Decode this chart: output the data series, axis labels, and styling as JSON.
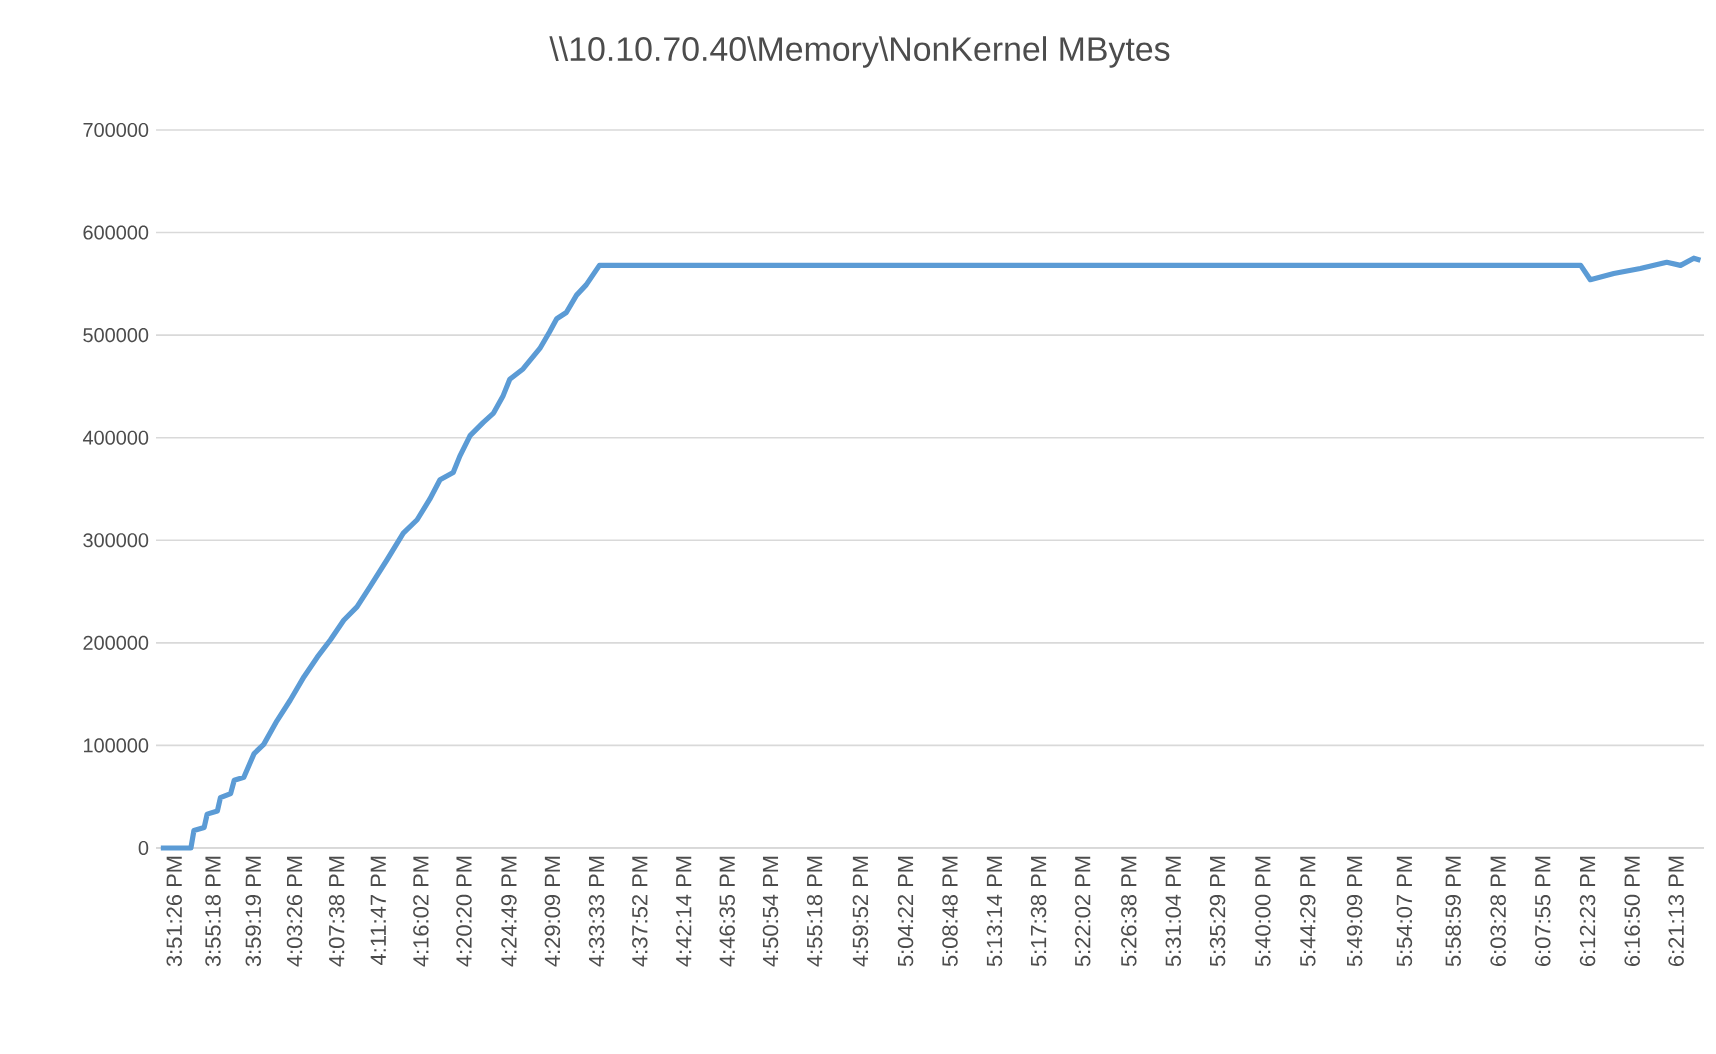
{
  "chart_data": {
    "type": "line",
    "title": "\\\\10.10.70.40\\Memory\\NonKernel MBytes",
    "x": [
      15.835,
      15.885,
      15.89,
      15.907,
      15.912,
      15.929,
      15.934,
      15.951,
      15.957,
      15.973,
      15.99,
      16.006,
      16.028,
      16.05,
      16.073,
      16.095,
      16.117,
      16.139,
      16.161,
      16.183,
      16.211,
      16.238,
      16.261,
      16.282,
      16.299,
      16.321,
      16.332,
      16.349,
      16.371,
      16.388,
      16.404,
      16.415,
      16.437,
      16.465,
      16.481,
      16.493,
      16.509,
      16.526,
      16.542,
      16.564,
      18.195,
      18.211,
      18.25,
      18.294,
      18.338,
      18.361,
      18.383,
      18.394
    ],
    "series": [
      {
        "color": "#5b9bd5",
        "values": [
          0,
          0,
          17000,
          20000,
          33000,
          36000,
          49000,
          53000,
          66000,
          69000,
          92000,
          101000,
          124000,
          144000,
          167000,
          186000,
          203000,
          222000,
          235000,
          255000,
          281000,
          307000,
          320000,
          340000,
          359000,
          366000,
          382000,
          402000,
          415000,
          424000,
          441000,
          457000,
          467000,
          487000,
          503000,
          516000,
          522000,
          539000,
          549000,
          568000,
          568000,
          554000,
          560000,
          565000,
          571000,
          568000,
          575000,
          573000
        ]
      }
    ],
    "xlim": [
      15.827,
      18.4
    ],
    "xticks": [
      {
        "value": 15.85722,
        "label": "3:51:26 PM"
      },
      {
        "value": 15.92167,
        "label": "3:55:18 PM"
      },
      {
        "value": 15.98861,
        "label": "3:59:19 PM"
      },
      {
        "value": 16.05722,
        "label": "4:03:26 PM"
      },
      {
        "value": 16.12722,
        "label": "4:07:38 PM"
      },
      {
        "value": 16.19639,
        "label": "4:11:47 PM"
      },
      {
        "value": 16.26722,
        "label": "4:16:02 PM"
      },
      {
        "value": 16.33889,
        "label": "4:20:20 PM"
      },
      {
        "value": 16.41361,
        "label": "4:24:49 PM"
      },
      {
        "value": 16.48583,
        "label": "4:29:09 PM"
      },
      {
        "value": 16.55917,
        "label": "4:33:33 PM"
      },
      {
        "value": 16.63111,
        "label": "4:37:52 PM"
      },
      {
        "value": 16.70389,
        "label": "4:42:14 PM"
      },
      {
        "value": 16.77639,
        "label": "4:46:35 PM"
      },
      {
        "value": 16.84833,
        "label": "4:50:54 PM"
      },
      {
        "value": 16.92167,
        "label": "4:55:18 PM"
      },
      {
        "value": 16.99778,
        "label": "4:59:52 PM"
      },
      {
        "value": 17.07278,
        "label": "5:04:22 PM"
      },
      {
        "value": 17.14667,
        "label": "5:08:48 PM"
      },
      {
        "value": 17.22056,
        "label": "5:13:14 PM"
      },
      {
        "value": 17.29389,
        "label": "5:17:38 PM"
      },
      {
        "value": 17.36722,
        "label": "5:22:02 PM"
      },
      {
        "value": 17.44389,
        "label": "5:26:38 PM"
      },
      {
        "value": 17.51778,
        "label": "5:31:04 PM"
      },
      {
        "value": 17.59139,
        "label": "5:35:29 PM"
      },
      {
        "value": 17.66667,
        "label": "5:40:00 PM"
      },
      {
        "value": 17.74139,
        "label": "5:44:29 PM"
      },
      {
        "value": 17.81917,
        "label": "5:49:09 PM"
      },
      {
        "value": 17.90194,
        "label": "5:54:07 PM"
      },
      {
        "value": 17.98306,
        "label": "5:58:59 PM"
      },
      {
        "value": 18.05778,
        "label": "6:03:28 PM"
      },
      {
        "value": 18.13194,
        "label": "6:07:55 PM"
      },
      {
        "value": 18.20639,
        "label": "6:12:23 PM"
      },
      {
        "value": 18.28056,
        "label": "6:16:50 PM"
      },
      {
        "value": 18.35361,
        "label": "6:21:13 PM"
      }
    ],
    "ylim": [
      0,
      700000
    ],
    "yticks": [
      0,
      100000,
      200000,
      300000,
      400000,
      500000,
      600000,
      700000
    ],
    "grid": "y",
    "legend": false,
    "marker": "none",
    "line_style": "solid"
  }
}
